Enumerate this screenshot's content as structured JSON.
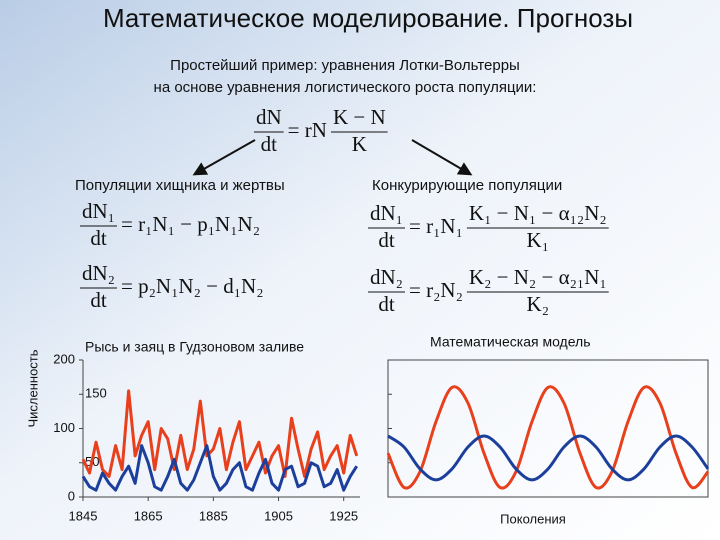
{
  "title": "Математическое моделирование. Прогнозы",
  "subtitle": [
    "Простейший пример: уравнения Лотки-Вольтерры",
    "на основе уравнения логистического роста популяции:"
  ],
  "headings": [
    "Популяции хищника и жертвы",
    "Конкурирующие популяции"
  ],
  "formulas": {
    "main": {
      "num": "dN",
      "den": "dt",
      "rhs": "= rN",
      "fnum": "K − N",
      "fden": "K"
    },
    "prey1": {
      "num": "dN₁",
      "den": "dt",
      "rhs": "= r₁N₁ − p₁N₁N₂"
    },
    "prey2": {
      "num": "dN₂",
      "den": "dt",
      "rhs": "= p₂N₁N₂ − d₁N₂"
    },
    "comp1": {
      "num": "dN₁",
      "den": "dt",
      "rhs": "= r₁N₁",
      "fnum": "K₁ − N₁ − α₁₂N₂",
      "fden": "K₁"
    },
    "comp2": {
      "num": "dN₂",
      "den": "dt",
      "rhs": "= r₂N₂",
      "fnum": "K₂ − N₂ − α₂₁N₁",
      "fden": "K₂"
    }
  },
  "chart_data": [
    {
      "type": "line",
      "title": "Рысь и заяц в Гудзоновом заливе",
      "ylabel": "Численность",
      "x": [
        1845,
        1847,
        1849,
        1851,
        1853,
        1855,
        1857,
        1859,
        1861,
        1863,
        1865,
        1867,
        1869,
        1871,
        1873,
        1875,
        1877,
        1879,
        1881,
        1883,
        1885,
        1887,
        1889,
        1891,
        1893,
        1895,
        1897,
        1899,
        1901,
        1903,
        1905,
        1907,
        1909,
        1911,
        1913,
        1915,
        1917,
        1919,
        1921,
        1923,
        1925,
        1927,
        1929
      ],
      "xlim": [
        1845,
        1930
      ],
      "xticks": [
        1845,
        1865,
        1885,
        1905,
        1925
      ],
      "ylim": [
        0,
        200
      ],
      "yticks": [
        0,
        50,
        100,
        150,
        200
      ],
      "series": [
        {
          "color": "#e8401c",
          "values": [
            55,
            35,
            80,
            40,
            30,
            75,
            40,
            155,
            60,
            90,
            110,
            40,
            100,
            85,
            40,
            90,
            40,
            70,
            140,
            60,
            70,
            100,
            40,
            80,
            110,
            40,
            60,
            80,
            35,
            60,
            75,
            30,
            115,
            70,
            30,
            70,
            95,
            40,
            60,
            75,
            35,
            90,
            60
          ]
        },
        {
          "color": "#1c3f9c",
          "values": [
            30,
            15,
            10,
            35,
            20,
            10,
            30,
            45,
            20,
            75,
            50,
            15,
            10,
            30,
            55,
            20,
            10,
            25,
            50,
            75,
            30,
            10,
            20,
            40,
            50,
            15,
            10,
            35,
            55,
            20,
            10,
            40,
            45,
            15,
            20,
            50,
            45,
            15,
            20,
            40,
            10,
            30,
            45
          ]
        }
      ]
    },
    {
      "type": "line",
      "title": "Математическая модель",
      "xlabel": "Поколения",
      "x": [
        0,
        5,
        10,
        15,
        20,
        25,
        30,
        35,
        40,
        45,
        50,
        55,
        60,
        65,
        70,
        75,
        80,
        85,
        90,
        95,
        100
      ],
      "xlim": [
        0,
        100
      ],
      "ylim": [
        0,
        200
      ],
      "series": [
        {
          "color": "#e8401c",
          "values": [
            64,
            14,
            37,
            110,
            160,
            137,
            64,
            14,
            37,
            110,
            160,
            137,
            64,
            14,
            37,
            110,
            160,
            137,
            64,
            14,
            37
          ]
        },
        {
          "color": "#1c3f9c",
          "values": [
            89,
            73,
            41,
            25,
            41,
            73,
            89,
            73,
            41,
            25,
            41,
            73,
            89,
            73,
            41,
            25,
            41,
            73,
            89,
            73,
            41
          ]
        }
      ]
    }
  ]
}
